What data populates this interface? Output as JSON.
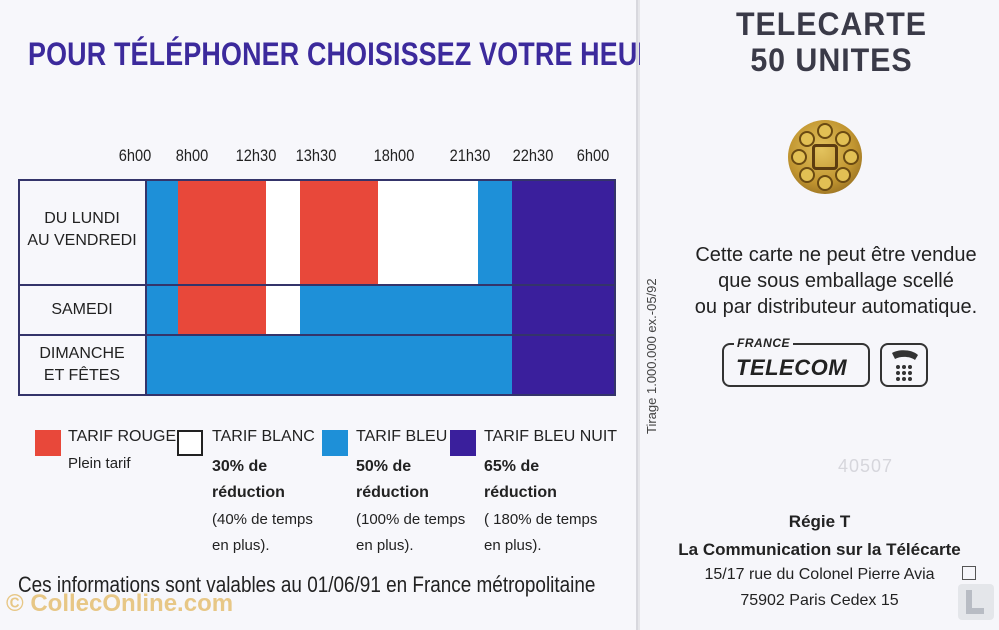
{
  "left": {
    "headline": "POUR TÉLÉPHONER CHOISISSEZ VOTRE HEURE.",
    "times": [
      "6h00",
      "8h00",
      "12h30",
      "13h30",
      "18h00",
      "21h30",
      "22h30",
      "6h00"
    ],
    "rows": [
      {
        "label_line1": "DU LUNDI",
        "label_line2": "AU VENDREDI"
      },
      {
        "label_line1": "SAMEDI"
      },
      {
        "label_line1": "DIMANCHE",
        "label_line2": "ET FÊTES"
      }
    ],
    "legend": [
      {
        "title": "TARIF ROUGE",
        "line1": "Plein tarif",
        "color": "#e8483a"
      },
      {
        "title": "TARIF BLANC",
        "bold1": "30% de",
        "bold2": "réduction",
        "small1": "(40% de temps",
        "small2": "en plus).",
        "color": "#ffffff"
      },
      {
        "title": "TARIF BLEU",
        "bold1": "50% de",
        "bold2": "réduction",
        "small1": "(100% de temps",
        "small2": "en plus).",
        "color": "#1e90d8"
      },
      {
        "title": "TARIF BLEU NUIT",
        "bold1": "65% de",
        "bold2": "réduction",
        "small1": "( 180% de temps",
        "small2": "en plus).",
        "color": "#3a1f9c"
      }
    ],
    "footer_note": "Ces informations sont valables au 01/06/91 en France métropolitaine",
    "watermark": "© CollecOnline.com"
  },
  "right": {
    "title_line1": "TELECARTE",
    "title_line2": "50 UNITES",
    "vertical_text": "Tirage 1.000.000 ex.-05/92",
    "sale_line1": "Cette carte ne peut être vendue",
    "sale_line2": "que sous emballage scellé",
    "sale_line3": "ou par distributeur automatique.",
    "logo_france": "FRANCE",
    "logo_telecom": "TELECOM",
    "serial": "40507",
    "regie_title": "Régie T",
    "regie_subtitle": "La Communication sur la Télécarte",
    "address1": "15/17 rue du Colonel Pierre Avia",
    "address2": "75902 Paris Cedex 15"
  },
  "colors": {
    "rouge": "#e8483a",
    "blanc": "#ffffff",
    "bleu": "#1e90d8",
    "bleu_nuit": "#3a1f9c",
    "headline": "#3c2a9c"
  }
}
